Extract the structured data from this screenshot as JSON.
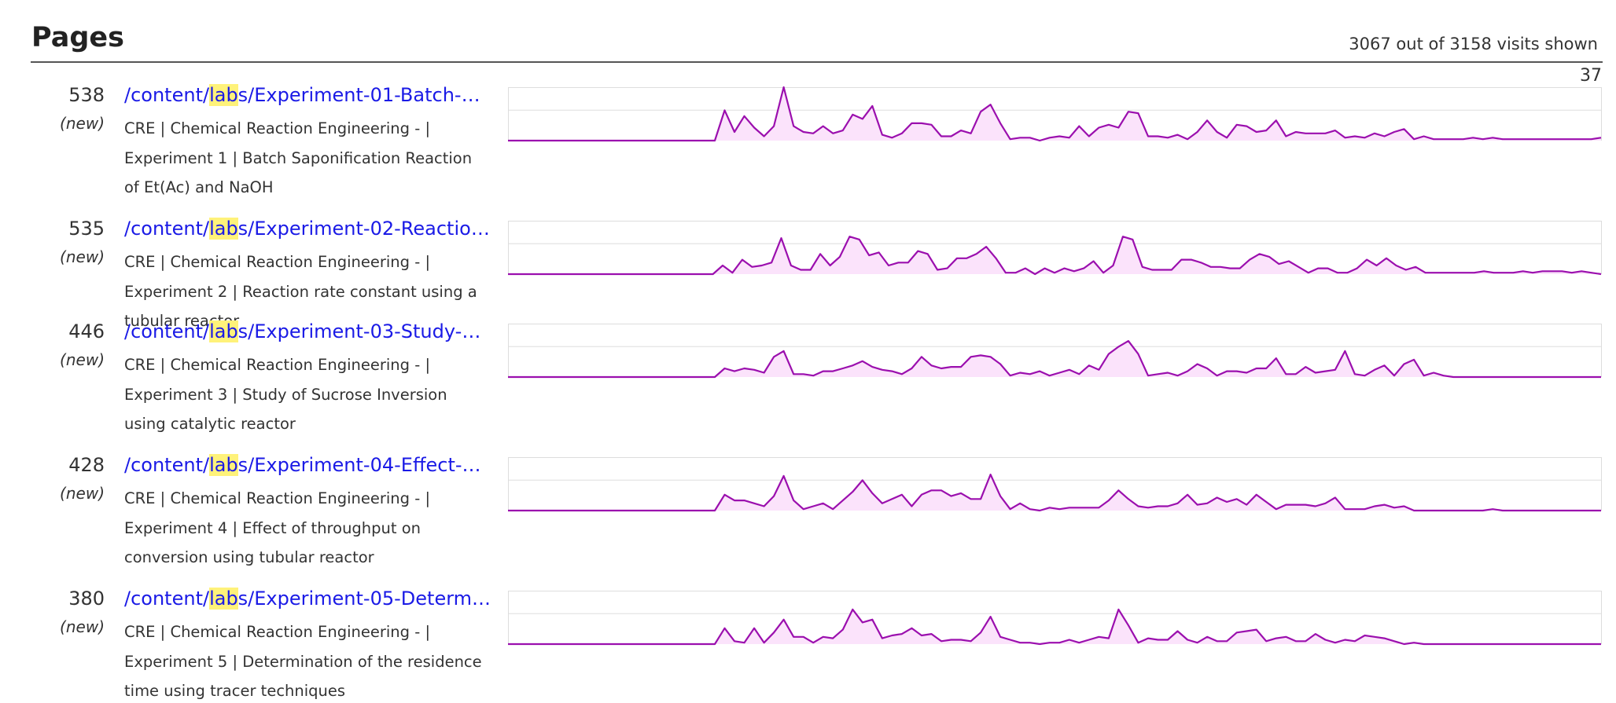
{
  "header": {
    "title": "Pages",
    "summary": "3067 out of 3158 visits shown",
    "scale_max": 37
  },
  "pages": [
    {
      "count": 538,
      "badge": "(new)",
      "link_before": "/content/",
      "link_match": "lab",
      "link_after": "s/Experiment-01-Batch-…",
      "description": "CRE | Chemical Reaction Engineering - | Experiment 1 | Batch Saponification Reaction of Et(Ac) and NaOH",
      "visits": [
        0,
        0,
        0,
        0,
        0,
        0,
        0,
        0,
        0,
        0,
        0,
        0,
        0,
        0,
        0,
        0,
        0,
        0,
        0,
        0,
        0,
        0,
        21,
        6,
        17,
        9,
        3,
        10,
        37,
        10,
        6,
        5,
        10,
        5,
        7,
        18,
        15,
        24,
        4,
        2,
        5,
        12,
        12,
        11,
        3,
        3,
        7,
        5,
        20,
        25,
        12,
        1,
        2,
        2,
        0,
        2,
        3,
        2,
        10,
        3,
        9,
        11,
        9,
        20,
        19,
        3,
        3,
        2,
        4,
        1,
        6,
        14,
        6,
        2,
        11,
        10,
        6,
        7,
        14,
        3,
        6,
        5,
        5,
        5,
        7,
        2,
        3,
        2,
        5,
        3,
        6,
        8,
        1,
        3,
        1,
        1,
        1,
        1,
        2,
        1,
        2,
        1,
        1,
        1,
        1,
        1,
        1,
        1,
        1,
        1,
        1,
        2
      ]
    },
    {
      "count": 535,
      "badge": "(new)",
      "link_before": "/content/",
      "link_match": "lab",
      "link_after": "s/Experiment-02-Reactio…",
      "description": "CRE | Chemical Reaction Engineering - | Experiment 2 | Reaction rate constant using a tubular reactor",
      "visits": [
        0,
        0,
        0,
        0,
        0,
        0,
        0,
        0,
        0,
        0,
        0,
        0,
        0,
        0,
        0,
        0,
        0,
        0,
        0,
        0,
        0,
        0,
        6,
        1,
        10,
        5,
        6,
        8,
        25,
        6,
        3,
        3,
        14,
        6,
        12,
        26,
        24,
        13,
        15,
        6,
        8,
        8,
        16,
        14,
        3,
        4,
        11,
        11,
        14,
        19,
        11,
        1,
        1,
        4,
        0,
        4,
        1,
        4,
        2,
        4,
        9,
        1,
        6,
        26,
        24,
        5,
        3,
        3,
        3,
        10,
        10,
        8,
        5,
        5,
        4,
        4,
        10,
        14,
        12,
        7,
        9,
        5,
        1,
        4,
        4,
        1,
        1,
        4,
        10,
        6,
        11,
        6,
        3,
        5,
        1,
        1,
        1,
        1,
        1,
        1,
        2,
        1,
        1,
        1,
        2,
        1,
        2,
        2,
        2,
        1,
        2,
        1,
        0
      ]
    },
    {
      "count": 446,
      "badge": "(new)",
      "link_before": "/content/",
      "link_match": "lab",
      "link_after": "s/Experiment-03-Study-…",
      "description": "CRE | Chemical Reaction Engineering - | Experiment 3 | Study of Sucrose Inversion using catalytic reactor",
      "visits": [
        0,
        0,
        0,
        0,
        0,
        0,
        0,
        0,
        0,
        0,
        0,
        0,
        0,
        0,
        0,
        0,
        0,
        0,
        0,
        0,
        0,
        0,
        6,
        4,
        6,
        5,
        3,
        14,
        18,
        2,
        2,
        1,
        4,
        4,
        6,
        8,
        11,
        7,
        5,
        4,
        2,
        6,
        14,
        8,
        6,
        7,
        7,
        14,
        15,
        14,
        9,
        1,
        3,
        2,
        4,
        1,
        3,
        5,
        2,
        8,
        5,
        16,
        21,
        25,
        16,
        1,
        2,
        3,
        1,
        4,
        9,
        6,
        1,
        4,
        4,
        3,
        6,
        6,
        13,
        2,
        2,
        7,
        3,
        4,
        5,
        18,
        2,
        1,
        5,
        8,
        1,
        9,
        12,
        1,
        3,
        1,
        0,
        0,
        0,
        0,
        0,
        0,
        0,
        0,
        0,
        0,
        0,
        0,
        0,
        0,
        0,
        0
      ]
    },
    {
      "count": 428,
      "badge": "(new)",
      "link_before": "/content/",
      "link_match": "lab",
      "link_after": "s/Experiment-04-Effect-…",
      "description": "CRE | Chemical Reaction Engineering - | Experiment 4 | Effect of throughput on conversion using tubular reactor",
      "visits": [
        0,
        0,
        0,
        0,
        0,
        0,
        0,
        0,
        0,
        0,
        0,
        0,
        0,
        0,
        0,
        0,
        0,
        0,
        0,
        0,
        0,
        0,
        11,
        7,
        7,
        5,
        3,
        10,
        24,
        7,
        1,
        3,
        5,
        1,
        7,
        13,
        21,
        12,
        5,
        8,
        11,
        3,
        11,
        14,
        14,
        10,
        12,
        8,
        8,
        25,
        10,
        1,
        5,
        1,
        0,
        2,
        1,
        2,
        2,
        2,
        2,
        7,
        14,
        8,
        3,
        2,
        3,
        3,
        5,
        11,
        4,
        5,
        9,
        6,
        8,
        4,
        11,
        6,
        1,
        4,
        4,
        4,
        3,
        5,
        9,
        1,
        1,
        1,
        3,
        4,
        2,
        3,
        0,
        0,
        0,
        0,
        0,
        0,
        0,
        0,
        1,
        0,
        0,
        0,
        0,
        0,
        0,
        0,
        0,
        0,
        0,
        0
      ]
    },
    {
      "count": 380,
      "badge": "(new)",
      "link_before": "/content/",
      "link_match": "lab",
      "link_after": "s/Experiment-05-Determ…",
      "description": "CRE | Chemical Reaction Engineering - | Experiment 5 | Determination of the residence time using tracer techniques",
      "visits": [
        0,
        0,
        0,
        0,
        0,
        0,
        0,
        0,
        0,
        0,
        0,
        0,
        0,
        0,
        0,
        0,
        0,
        0,
        0,
        0,
        0,
        0,
        11,
        2,
        1,
        11,
        1,
        8,
        17,
        5,
        5,
        1,
        5,
        4,
        10,
        24,
        15,
        17,
        4,
        6,
        7,
        11,
        6,
        7,
        2,
        3,
        3,
        2,
        8,
        19,
        5,
        3,
        1,
        1,
        0,
        1,
        1,
        3,
        1,
        3,
        5,
        4,
        24,
        13,
        1,
        4,
        3,
        3,
        9,
        3,
        1,
        5,
        2,
        2,
        8,
        9,
        10,
        2,
        4,
        5,
        2,
        2,
        7,
        3,
        1,
        3,
        2,
        6,
        5,
        4,
        2,
        0,
        1,
        0,
        0,
        0,
        0,
        0,
        0,
        0,
        0,
        0,
        0,
        0,
        0,
        0,
        0,
        0,
        0,
        0,
        0,
        0
      ]
    }
  ]
}
